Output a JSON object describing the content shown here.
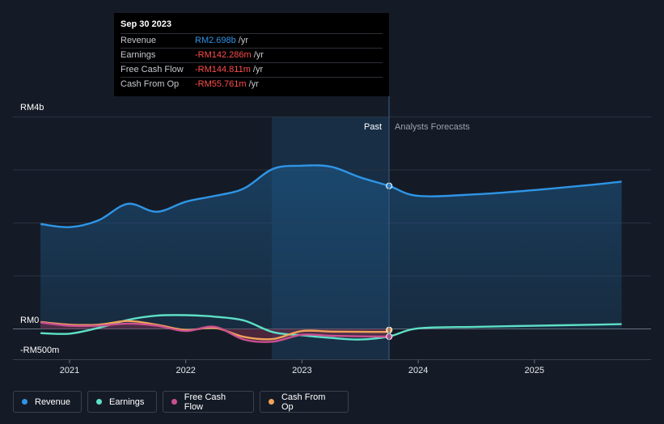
{
  "tooltip": {
    "date": "Sep 30 2023",
    "rows": [
      {
        "name": "Revenue",
        "value": "RM2.698b",
        "unit": "/yr",
        "color": "#2f95e6"
      },
      {
        "name": "Earnings",
        "value": "-RM142.286m",
        "unit": "/yr",
        "color": "#ff4c4c"
      },
      {
        "name": "Free Cash Flow",
        "value": "-RM144.811m",
        "unit": "/yr",
        "color": "#ff4c4c"
      },
      {
        "name": "Cash From Op",
        "value": "-RM55.761m",
        "unit": "/yr",
        "color": "#ff4c4c"
      }
    ]
  },
  "legend": [
    {
      "name": "Revenue",
      "color": "#2f95e6"
    },
    {
      "name": "Earnings",
      "color": "#5ee0c7"
    },
    {
      "name": "Free Cash Flow",
      "color": "#c8508f"
    },
    {
      "name": "Cash From Op",
      "color": "#f0a35a"
    }
  ],
  "chart_data": {
    "type": "line",
    "y_axis_labels": [
      "RM4b",
      "RM0",
      "-RM500m"
    ],
    "x_tick_labels": [
      "2021",
      "2022",
      "2023",
      "2024",
      "2025"
    ],
    "past_label": "Past",
    "forecast_label": "Analysts Forecasts",
    "ylim": [
      -500,
      4000
    ],
    "units": "RM millions",
    "grid": true,
    "highlight_date": "2023-09-30",
    "series": [
      {
        "name": "Revenue",
        "color": "#2f95e6",
        "points": [
          [
            2020.75,
            1980
          ],
          [
            2021.0,
            1920
          ],
          [
            2021.25,
            2050
          ],
          [
            2021.5,
            2360
          ],
          [
            2021.75,
            2210
          ],
          [
            2022.0,
            2400
          ],
          [
            2022.25,
            2510
          ],
          [
            2022.5,
            2650
          ],
          [
            2022.75,
            3020
          ],
          [
            2023.0,
            3080
          ],
          [
            2023.25,
            3060
          ],
          [
            2023.5,
            2860
          ],
          [
            2023.75,
            2698
          ]
        ],
        "forecast": [
          [
            2023.75,
            2698
          ],
          [
            2024.0,
            2510
          ],
          [
            2024.5,
            2540
          ],
          [
            2025.0,
            2620
          ],
          [
            2025.5,
            2720
          ],
          [
            2025.75,
            2780
          ]
        ]
      },
      {
        "name": "Earnings",
        "color": "#5ee0c7",
        "points": [
          [
            2020.75,
            -80
          ],
          [
            2021.0,
            -90
          ],
          [
            2021.25,
            20
          ],
          [
            2021.5,
            170
          ],
          [
            2021.75,
            250
          ],
          [
            2022.0,
            260
          ],
          [
            2022.25,
            230
          ],
          [
            2022.5,
            160
          ],
          [
            2022.75,
            -60
          ],
          [
            2023.0,
            -120
          ],
          [
            2023.25,
            -170
          ],
          [
            2023.5,
            -200
          ],
          [
            2023.75,
            -142
          ]
        ],
        "forecast": [
          [
            2023.75,
            -142
          ],
          [
            2024.0,
            10
          ],
          [
            2024.5,
            40
          ],
          [
            2025.0,
            60
          ],
          [
            2025.5,
            80
          ],
          [
            2025.75,
            90
          ]
        ]
      },
      {
        "name": "Free Cash Flow",
        "color": "#c8508f",
        "points": [
          [
            2020.75,
            120
          ],
          [
            2021.0,
            60
          ],
          [
            2021.25,
            60
          ],
          [
            2021.5,
            100
          ],
          [
            2021.75,
            60
          ],
          [
            2022.0,
            -40
          ],
          [
            2022.25,
            40
          ],
          [
            2022.5,
            -200
          ],
          [
            2022.75,
            -240
          ],
          [
            2023.0,
            -110
          ],
          [
            2023.25,
            -130
          ],
          [
            2023.5,
            -140
          ],
          [
            2023.75,
            -145
          ]
        ]
      },
      {
        "name": "Cash From Op",
        "color": "#f0a35a",
        "points": [
          [
            2020.75,
            130
          ],
          [
            2021.0,
            80
          ],
          [
            2021.25,
            80
          ],
          [
            2021.5,
            150
          ],
          [
            2021.75,
            80
          ],
          [
            2022.0,
            -20
          ],
          [
            2022.25,
            20
          ],
          [
            2022.5,
            -150
          ],
          [
            2022.75,
            -190
          ],
          [
            2023.0,
            -40
          ],
          [
            2023.25,
            -50
          ],
          [
            2023.5,
            -55
          ],
          [
            2023.75,
            -56
          ]
        ]
      }
    ]
  }
}
